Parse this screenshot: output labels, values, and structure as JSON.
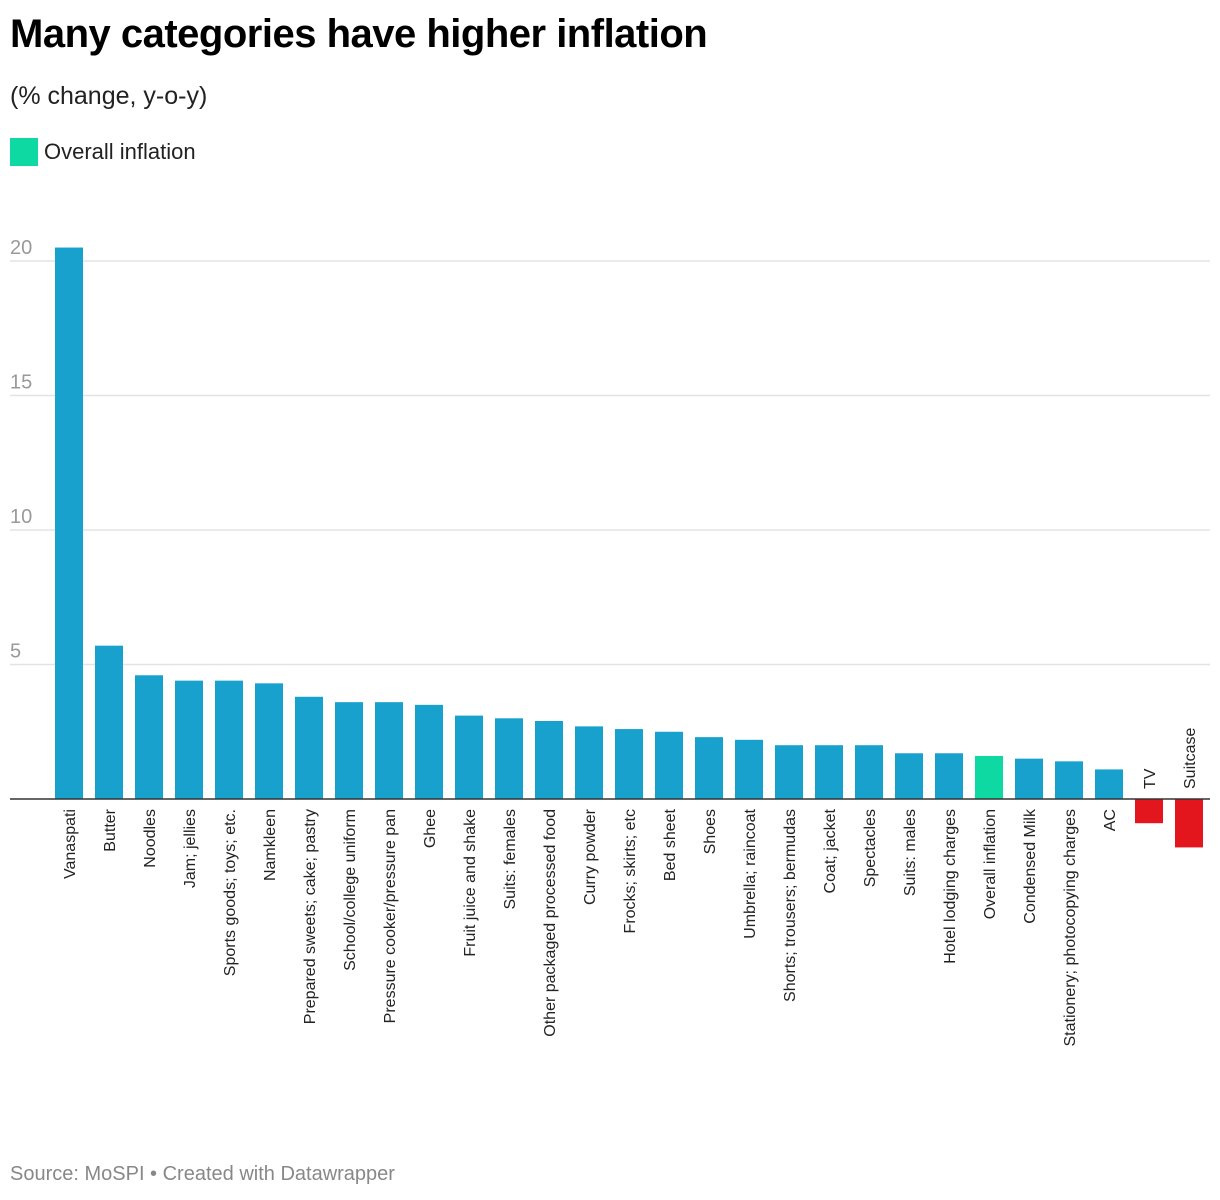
{
  "header": {
    "title": "Many categories have higher inflation",
    "subtitle": "(% change, y-o-y)"
  },
  "legend": {
    "label": "Overall inflation",
    "color": "#0fd9a3"
  },
  "footer": {
    "text": "Source: MoSPI • Created with Datawrapper"
  },
  "colors": {
    "default": "#18a1cd",
    "highlight": "#0fd9a3",
    "negative": "#e4161d",
    "grid": "#e3e3e3",
    "axis": "#333333"
  },
  "chart_data": {
    "type": "bar",
    "title": "Many categories have higher inflation",
    "subtitle": "(% change, y-o-y)",
    "xlabel": "",
    "ylabel": "",
    "ylim": [
      -2,
      20.5
    ],
    "yticks": [
      5,
      10,
      15,
      20
    ],
    "grid": true,
    "categories": [
      "Vanaspati",
      "Butter",
      "Noodles",
      "Jam; jellies",
      "Sports goods; toys; etc.",
      "Namkleen",
      "Prepared sweets; cake; pastry",
      "School/college uniform",
      "Pressure cooker/pressure pan",
      "Ghee",
      "Fruit juice and shake",
      "Suits: females",
      "Other packaged processed food",
      "Curry powder",
      "Frocks; skirts; etc",
      "Bed sheet",
      "Shoes",
      "Umbrella; raincoat",
      "Shorts; trousers; bermudas",
      "Coat; jacket",
      "Spectacles",
      "Suits: males",
      "Hotel lodging charges",
      "Overall inflation",
      "Condensed Milk",
      "Stationery; photocopying charges",
      "AC",
      "TV",
      "Suitcase"
    ],
    "values": [
      20.5,
      5.7,
      4.6,
      4.4,
      4.4,
      4.3,
      3.8,
      3.6,
      3.6,
      3.5,
      3.1,
      3.0,
      2.9,
      2.7,
      2.6,
      2.5,
      2.3,
      2.2,
      2.0,
      2.0,
      2.0,
      1.7,
      1.7,
      1.6,
      1.5,
      1.4,
      1.1,
      -0.9,
      -1.8
    ],
    "highlight": "Overall inflation"
  }
}
